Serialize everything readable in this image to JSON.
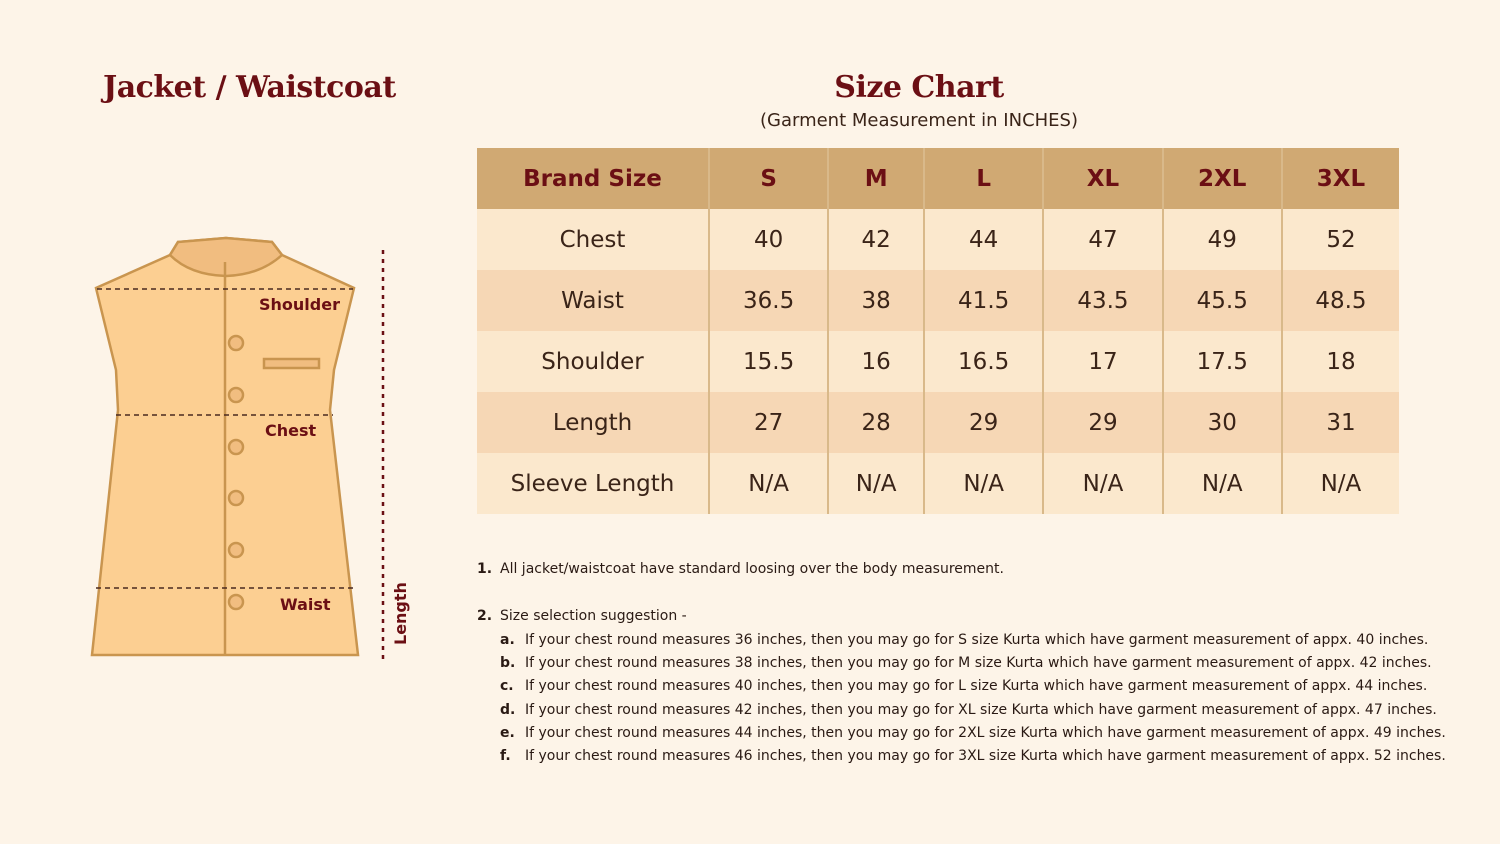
{
  "left_title": "Jacket / Waistcoat",
  "diagram": {
    "labels": {
      "shoulder": "Shoulder",
      "chest": "Chest",
      "waist": "Waist",
      "length": "Length"
    },
    "colors": {
      "fill": "#fccf92",
      "stroke": "#c9954f",
      "label": "#6b0f14"
    }
  },
  "size_chart": {
    "title": "Size Chart",
    "subtitle": "(Garment Measurement in INCHES)",
    "headers": [
      "Brand Size",
      "S",
      "M",
      "L",
      "XL",
      "2XL",
      "3XL"
    ],
    "rows": [
      {
        "label": "Chest",
        "values": [
          "40",
          "42",
          "44",
          "47",
          "49",
          "52"
        ]
      },
      {
        "label": "Waist",
        "values": [
          "36.5",
          "38",
          "41.5",
          "43.5",
          "45.5",
          "48.5"
        ]
      },
      {
        "label": "Shoulder",
        "values": [
          "15.5",
          "16",
          "16.5",
          "17",
          "17.5",
          "18"
        ]
      },
      {
        "label": "Length",
        "values": [
          "27",
          "28",
          "29",
          "29",
          "30",
          "31"
        ]
      },
      {
        "label": "Sleeve Length",
        "values": [
          "N/A",
          "N/A",
          "N/A",
          "N/A",
          "N/A",
          "N/A"
        ]
      }
    ]
  },
  "notes": {
    "n1": {
      "num": "1.",
      "text": "All jacket/waistcoat have standard loosing over the body measurement."
    },
    "n2": {
      "num": "2.",
      "text": "Size selection suggestion -"
    },
    "subs": [
      {
        "num": "a.",
        "text": "If your chest round measures 36 inches, then you may go for S size Kurta which have garment measurement of appx. 40 inches."
      },
      {
        "num": "b.",
        "text": "If your chest round measures 38 inches, then you may go for M size Kurta which have garment measurement of appx. 42 inches."
      },
      {
        "num": "c.",
        "text": "If your chest round measures 40 inches, then you may go for  L size Kurta which have garment measurement of appx. 44 inches."
      },
      {
        "num": "d.",
        "text": "If your chest round measures 42 inches, then you may go for XL size Kurta which have garment measurement of appx. 47 inches."
      },
      {
        "num": "e.",
        "text": "If your chest round measures 44 inches, then you may go for 2XL size Kurta which have garment measurement of appx. 49 inches."
      },
      {
        "num": "f.",
        "text": "If your chest round measures 46 inches, then you may go for 3XL size Kurta which have garment measurement of appx. 52 inches."
      }
    ]
  }
}
